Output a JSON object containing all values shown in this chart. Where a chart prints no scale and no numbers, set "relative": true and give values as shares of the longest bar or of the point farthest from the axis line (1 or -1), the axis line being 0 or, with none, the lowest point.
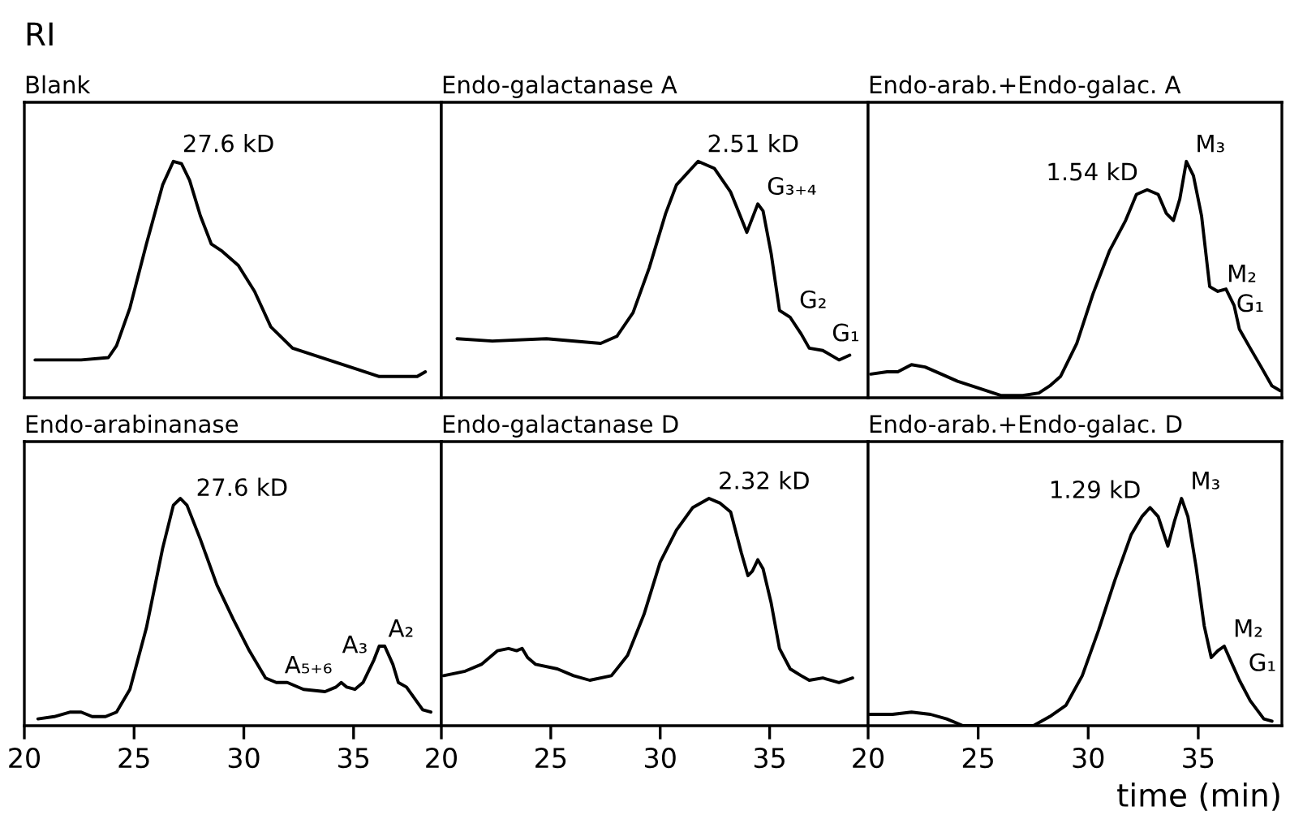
{
  "chart_data": [
    {
      "type": "line",
      "title": "Blank",
      "ylabel": "RI",
      "relative": true,
      "tick_labels": false,
      "grid": false,
      "xlim": [
        20,
        39
      ],
      "series": [
        {
          "color": "#000000",
          "x": [
            20.49,
            21.36,
            22.59,
            23.83,
            24.2,
            24.81,
            25.56,
            26.3,
            26.79,
            27.16,
            27.53,
            28.02,
            28.52,
            29.01,
            29.75,
            30.49,
            31.23,
            32.22,
            33.21,
            34.2,
            35.19,
            36.17,
            37.16,
            37.9,
            38.27
          ],
          "values": [
            0.16,
            0.16,
            0.16,
            0.17,
            0.22,
            0.38,
            0.65,
            0.9,
            1,
            0.99,
            0.92,
            0.77,
            0.65,
            0.62,
            0.56,
            0.45,
            0.3,
            0.21,
            0.18,
            0.15,
            0.12,
            0.09,
            0.09,
            0.09,
            0.11
          ]
        }
      ],
      "annotations": [
        {
          "text": "27.6 kD",
          "x": 26.79,
          "y": 1
        }
      ]
    },
    {
      "type": "line",
      "title": "Endo-galactanase A",
      "relative": true,
      "tick_labels": false,
      "grid": false,
      "xlim": [
        20,
        39.5
      ],
      "series": [
        {
          "color": "#000000",
          "x": [
            20.72,
            22.33,
            24.8,
            27.28,
            28.02,
            28.76,
            29.5,
            30.25,
            30.74,
            31.73,
            32.48,
            33.22,
            33.96,
            34.46,
            34.7,
            35.07,
            35.45,
            35.94,
            36.44,
            36.81,
            37.43,
            38.17,
            38.66
          ],
          "values": [
            0.25,
            0.24,
            0.25,
            0.23,
            0.26,
            0.36,
            0.55,
            0.78,
            0.9,
            1,
            0.97,
            0.87,
            0.7,
            0.82,
            0.79,
            0.61,
            0.37,
            0.34,
            0.27,
            0.21,
            0.2,
            0.16,
            0.18
          ]
        }
      ],
      "annotations": [
        {
          "text": "2.51 kD",
          "x": 31.73,
          "y": 1
        },
        {
          "text": "G₃₊₄",
          "x": 34.46,
          "y": 0.82
        },
        {
          "text": "G₂",
          "x": 35.94,
          "y": 0.34
        },
        {
          "text": "G₁",
          "x": 37.43,
          "y": 0.2
        }
      ]
    },
    {
      "type": "line",
      "title": "Endo-arab.+Endo-galac. A",
      "relative": true,
      "tick_labels": false,
      "grid": false,
      "xlim": [
        20,
        38.8
      ],
      "series": [
        {
          "color": "#000000",
          "x": [
            20.12,
            20.86,
            21.35,
            21.97,
            22.59,
            23.33,
            24.06,
            25.05,
            26.03,
            27.02,
            27.76,
            28.25,
            28.74,
            29.48,
            30.22,
            30.96,
            31.7,
            32.19,
            32.68,
            33.18,
            33.55,
            33.87,
            34.16,
            34.46,
            34.78,
            35.15,
            35.52,
            35.89,
            36.26,
            36.63,
            36.87,
            37.36,
            37.86,
            38.35,
            38.72
          ],
          "values": [
            0.1,
            0.11,
            0.11,
            0.14,
            0.13,
            0.1,
            0.07,
            0.04,
            0.01,
            0.01,
            0.02,
            0.05,
            0.09,
            0.23,
            0.44,
            0.62,
            0.75,
            0.86,
            0.88,
            0.86,
            0.78,
            0.75,
            0.84,
            1,
            0.94,
            0.77,
            0.47,
            0.45,
            0.46,
            0.39,
            0.29,
            0.21,
            0.13,
            0.05,
            0.03
          ]
        }
      ],
      "annotations": [
        {
          "text": "1.54 kD",
          "x": 32.68,
          "y": 0.88
        },
        {
          "text": "M₃",
          "x": 34.46,
          "y": 1
        },
        {
          "text": "M₂",
          "x": 35.89,
          "y": 0.45
        },
        {
          "text": "G₁",
          "x": 37.36,
          "y": 0.21
        }
      ]
    },
    {
      "type": "line",
      "title": "Endo-arabinanase",
      "relative": true,
      "tick_labels": "x",
      "grid": false,
      "xlim": [
        20,
        39
      ],
      "xticks": [
        20,
        25,
        30,
        35
      ],
      "series": [
        {
          "color": "#000000",
          "x": [
            20.62,
            21.36,
            22.1,
            22.59,
            23.09,
            23.7,
            24.2,
            24.81,
            25.56,
            26.3,
            26.79,
            27.11,
            27.41,
            28.02,
            28.77,
            29.51,
            30.25,
            30.99,
            31.48,
            31.98,
            32.72,
            33.7,
            34.2,
            34.44,
            34.69,
            35.06,
            35.43,
            35.93,
            36.17,
            36.42,
            36.79,
            37.04,
            37.41,
            37.78,
            38.15,
            38.52
          ],
          "values": [
            0.03,
            0.04,
            0.06,
            0.06,
            0.04,
            0.04,
            0.06,
            0.16,
            0.43,
            0.78,
            0.97,
            1,
            0.97,
            0.82,
            0.62,
            0.47,
            0.33,
            0.21,
            0.19,
            0.19,
            0.16,
            0.15,
            0.17,
            0.19,
            0.17,
            0.16,
            0.19,
            0.29,
            0.35,
            0.35,
            0.27,
            0.19,
            0.17,
            0.12,
            0.07,
            0.06
          ]
        }
      ],
      "annotations": [
        {
          "text": "27.6 kD",
          "x": 27.41,
          "y": 0.97
        },
        {
          "text": "A₅₊₆",
          "x": 34.44,
          "y": 0.19
        },
        {
          "text": "A₃",
          "x": 35.06,
          "y": 0.16
        },
        {
          "text": "A₂",
          "x": 36.17,
          "y": 0.35
        }
      ]
    },
    {
      "type": "line",
      "title": "Endo-galactanase D",
      "relative": true,
      "tick_labels": "x",
      "grid": false,
      "xlim": [
        20,
        39.5
      ],
      "xticks": [
        20,
        25,
        30,
        35
      ],
      "series": [
        {
          "color": "#000000",
          "x": [
            20.1,
            21.09,
            21.83,
            22.57,
            23.07,
            23.44,
            23.69,
            23.94,
            24.31,
            25.3,
            26.04,
            26.78,
            27.77,
            28.51,
            29.26,
            30.0,
            30.74,
            31.49,
            32.23,
            32.72,
            33.22,
            33.71,
            34.01,
            34.21,
            34.46,
            34.7,
            35.07,
            35.45,
            35.94,
            36.44,
            36.81,
            37.43,
            38.17,
            38.79
          ],
          "values": [
            0.22,
            0.24,
            0.27,
            0.33,
            0.34,
            0.33,
            0.34,
            0.3,
            0.27,
            0.25,
            0.22,
            0.2,
            0.22,
            0.31,
            0.49,
            0.72,
            0.86,
            0.96,
            1,
            0.98,
            0.94,
            0.76,
            0.66,
            0.68,
            0.73,
            0.69,
            0.54,
            0.34,
            0.25,
            0.22,
            0.2,
            0.21,
            0.19,
            0.21
          ]
        }
      ],
      "annotations": [
        {
          "text": "2.32 kD",
          "x": 32.23,
          "y": 1
        }
      ]
    },
    {
      "type": "line",
      "title": "Endo-arab.+Endo-galac. D",
      "xlabel": "time (min)",
      "relative": true,
      "tick_labels": "x",
      "grid": false,
      "xlim": [
        20,
        38.8
      ],
      "xticks": [
        20,
        25,
        30,
        35
      ],
      "series": [
        {
          "color": "#000000",
          "x": [
            20.0,
            21.11,
            21.97,
            22.83,
            23.57,
            24.31,
            25.79,
            27.51,
            28.25,
            28.99,
            29.73,
            30.47,
            31.21,
            31.95,
            32.44,
            32.81,
            33.18,
            33.62,
            33.92,
            34.24,
            34.53,
            34.9,
            35.27,
            35.59,
            35.89,
            36.18,
            36.5,
            36.87,
            37.36,
            37.98,
            38.35
          ],
          "values": [
            0.05,
            0.05,
            0.06,
            0.05,
            0.03,
            0,
            0,
            0,
            0.04,
            0.09,
            0.22,
            0.42,
            0.64,
            0.84,
            0.92,
            0.96,
            0.92,
            0.79,
            0.9,
            1,
            0.92,
            0.7,
            0.44,
            0.3,
            0.33,
            0.35,
            0.28,
            0.2,
            0.11,
            0.03,
            0.02
          ]
        }
      ],
      "annotations": [
        {
          "text": "1.29 kD",
          "x": 32.81,
          "y": 0.96
        },
        {
          "text": "M₃",
          "x": 34.24,
          "y": 1
        },
        {
          "text": "M₂",
          "x": 36.18,
          "y": 0.35
        },
        {
          "text": "G₁",
          "x": 36.87,
          "y": 0.2
        }
      ]
    }
  ]
}
